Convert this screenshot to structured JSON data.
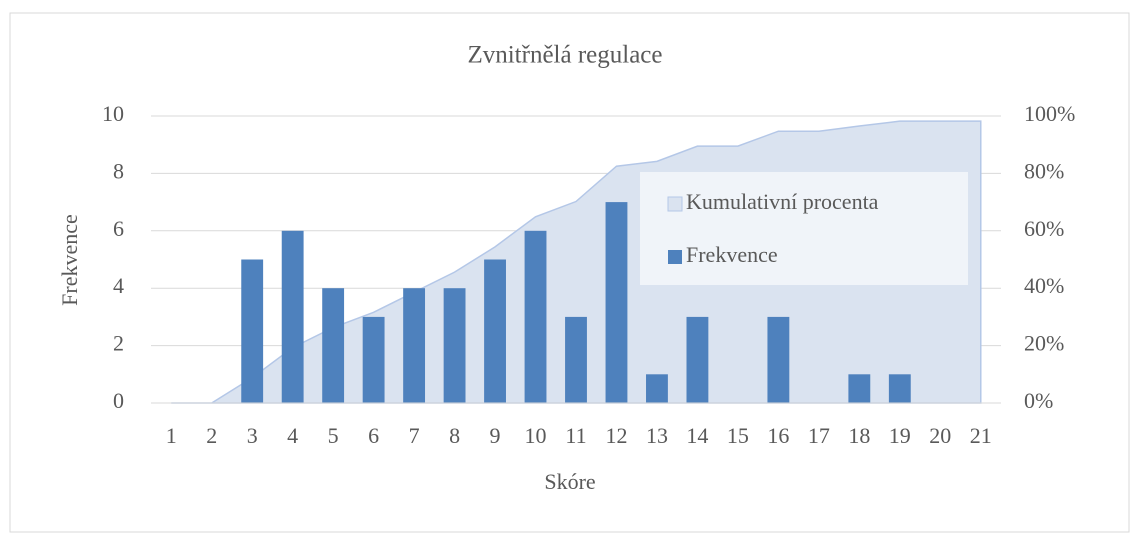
{
  "chart_data": {
    "type": "bar",
    "title": "Zvnitřnělá regulace",
    "x_label": "Skóre",
    "y_label": "Frekvence",
    "categories": [
      "1",
      "2",
      "3",
      "4",
      "5",
      "6",
      "7",
      "8",
      "9",
      "10",
      "11",
      "12",
      "13",
      "14",
      "15",
      "16",
      "17",
      "18",
      "19",
      "20",
      "21"
    ],
    "series": [
      {
        "name": "Kumulativní procenta",
        "type": "area",
        "axis": "y2",
        "color": "#dae3f0",
        "line_color": "#b4c7e7",
        "values": [
          0,
          0,
          8.8,
          19.3,
          26.3,
          31.6,
          38.6,
          45.6,
          54.4,
          64.9,
          70.2,
          82.5,
          84.2,
          89.5,
          89.5,
          94.7,
          94.7,
          96.5,
          98.2,
          98.2,
          98.2
        ]
      },
      {
        "name": "Frekvence",
        "type": "bar",
        "color": "#4e81bd",
        "values": [
          0,
          0,
          5,
          6,
          4,
          3,
          4,
          4,
          5,
          6,
          3,
          7,
          1,
          3,
          0,
          3,
          0,
          1,
          1,
          0,
          0
        ]
      }
    ],
    "ylim": [
      0,
      10
    ],
    "yticks": [
      0,
      2,
      4,
      6,
      8,
      10
    ],
    "y2lim": [
      0,
      100
    ],
    "y2ticks": [
      {
        "value": 0,
        "label": "0%"
      },
      {
        "value": 20,
        "label": "20%"
      },
      {
        "value": 40,
        "label": "40%"
      },
      {
        "value": 60,
        "label": "60%"
      },
      {
        "value": 80,
        "label": "80%"
      },
      {
        "value": 100,
        "label": "100%"
      }
    ],
    "grid": true,
    "legend": "upper right"
  }
}
